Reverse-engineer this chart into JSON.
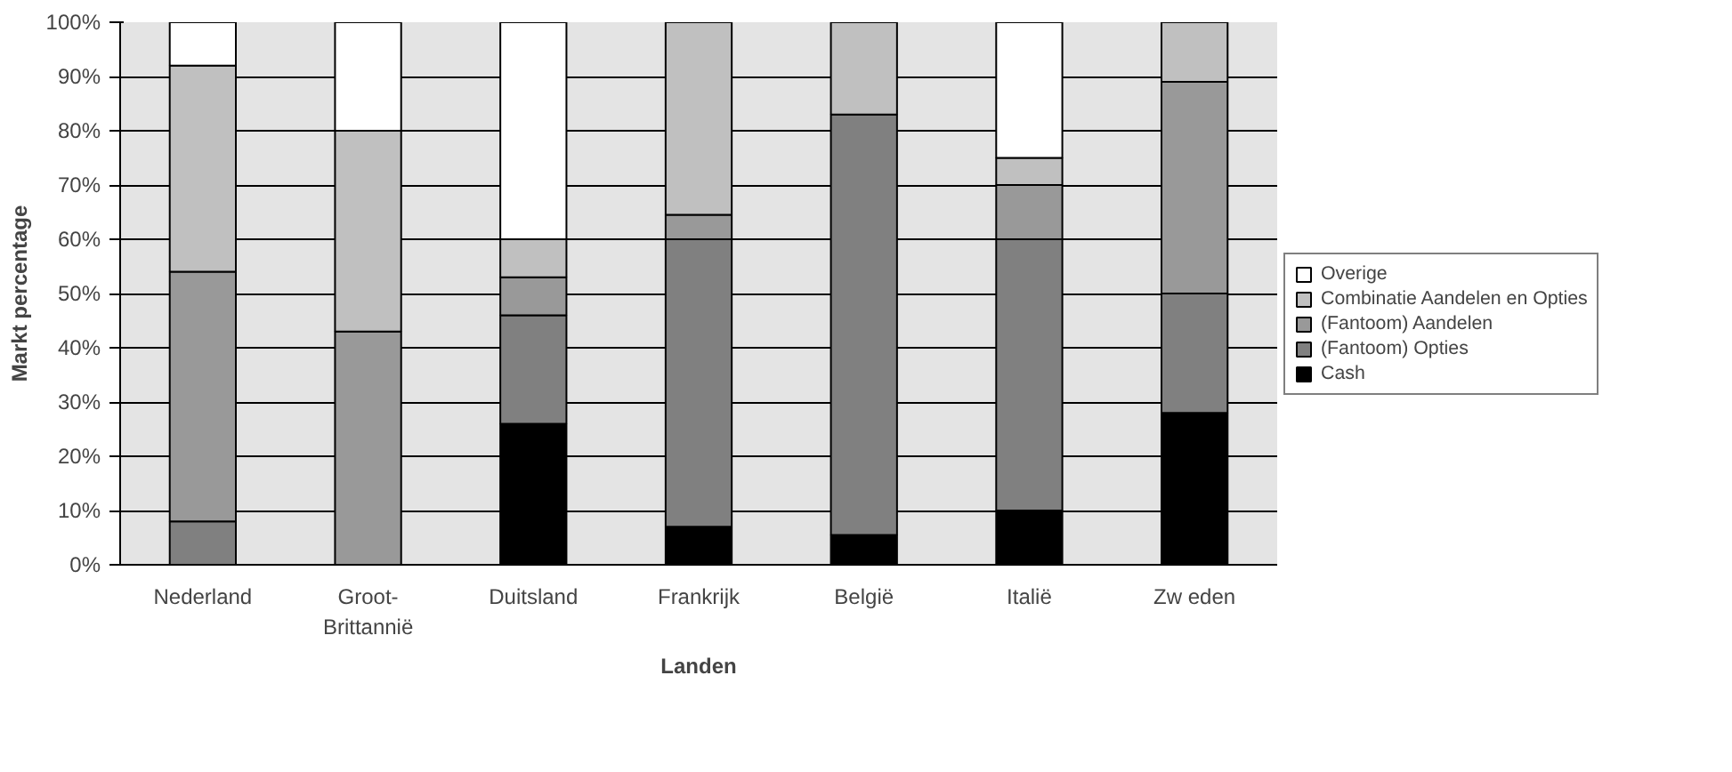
{
  "chart_data": {
    "type": "bar",
    "stacked": true,
    "xlabel": "Landen",
    "ylabel": "Markt percentage",
    "categories": [
      "Nederland",
      "Groot-\nBrittannië",
      "Duitsland",
      "Frankrijk",
      "België",
      "Italië",
      "Zw eden"
    ],
    "series": [
      {
        "name": "Cash",
        "color": "#000000",
        "values": [
          0,
          0,
          26,
          7,
          5.5,
          10,
          28
        ]
      },
      {
        "name": "(Fantoom) Opties",
        "color": "#808080",
        "values": [
          8,
          0,
          20,
          53,
          77.5,
          50,
          22
        ]
      },
      {
        "name": "(Fantoom) Aandelen",
        "color": "#999999",
        "values": [
          46,
          43,
          7,
          4.5,
          0,
          10,
          39
        ]
      },
      {
        "name": "Combinatie Aandelen en Opties",
        "color": "#c0c0c0",
        "values": [
          38,
          37,
          7,
          35.5,
          17,
          5,
          11
        ]
      },
      {
        "name": "Overige",
        "color": "#ffffff",
        "values": [
          8,
          20,
          40,
          0,
          0,
          25,
          0
        ]
      }
    ],
    "ylim": [
      0,
      100
    ],
    "yticks": [
      {
        "value": 0,
        "label": "0%"
      },
      {
        "value": 10,
        "label": "10%"
      },
      {
        "value": 20,
        "label": "20%"
      },
      {
        "value": 30,
        "label": "30%"
      },
      {
        "value": 40,
        "label": "40%"
      },
      {
        "value": 50,
        "label": "50%"
      },
      {
        "value": 60,
        "label": "60%"
      },
      {
        "value": 70,
        "label": "70%"
      },
      {
        "value": 80,
        "label": "80%"
      },
      {
        "value": 90,
        "label": "90%"
      },
      {
        "value": 100,
        "label": "100%"
      }
    ],
    "grid": "y",
    "legend": "right"
  }
}
